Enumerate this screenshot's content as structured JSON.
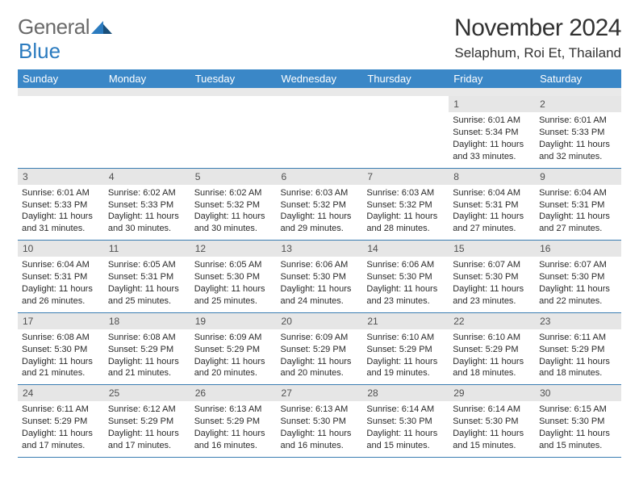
{
  "logo": {
    "word1": "General",
    "word2": "Blue"
  },
  "title": "November 2024",
  "location": "Selaphum, Roi Et, Thailand",
  "colors": {
    "header_bg": "#3a87c7",
    "header_text": "#ffffff",
    "daynum_bg": "#e6e6e6",
    "cell_border": "#3a7db2",
    "logo_gray": "#6a6a6a",
    "logo_blue": "#2b7bbf"
  },
  "weekdays": [
    "Sunday",
    "Monday",
    "Tuesday",
    "Wednesday",
    "Thursday",
    "Friday",
    "Saturday"
  ],
  "weeks": [
    [
      null,
      null,
      null,
      null,
      null,
      {
        "n": "1",
        "sunrise": "Sunrise: 6:01 AM",
        "sunset": "Sunset: 5:34 PM",
        "daylight": "Daylight: 11 hours and 33 minutes."
      },
      {
        "n": "2",
        "sunrise": "Sunrise: 6:01 AM",
        "sunset": "Sunset: 5:33 PM",
        "daylight": "Daylight: 11 hours and 32 minutes."
      }
    ],
    [
      {
        "n": "3",
        "sunrise": "Sunrise: 6:01 AM",
        "sunset": "Sunset: 5:33 PM",
        "daylight": "Daylight: 11 hours and 31 minutes."
      },
      {
        "n": "4",
        "sunrise": "Sunrise: 6:02 AM",
        "sunset": "Sunset: 5:33 PM",
        "daylight": "Daylight: 11 hours and 30 minutes."
      },
      {
        "n": "5",
        "sunrise": "Sunrise: 6:02 AM",
        "sunset": "Sunset: 5:32 PM",
        "daylight": "Daylight: 11 hours and 30 minutes."
      },
      {
        "n": "6",
        "sunrise": "Sunrise: 6:03 AM",
        "sunset": "Sunset: 5:32 PM",
        "daylight": "Daylight: 11 hours and 29 minutes."
      },
      {
        "n": "7",
        "sunrise": "Sunrise: 6:03 AM",
        "sunset": "Sunset: 5:32 PM",
        "daylight": "Daylight: 11 hours and 28 minutes."
      },
      {
        "n": "8",
        "sunrise": "Sunrise: 6:04 AM",
        "sunset": "Sunset: 5:31 PM",
        "daylight": "Daylight: 11 hours and 27 minutes."
      },
      {
        "n": "9",
        "sunrise": "Sunrise: 6:04 AM",
        "sunset": "Sunset: 5:31 PM",
        "daylight": "Daylight: 11 hours and 27 minutes."
      }
    ],
    [
      {
        "n": "10",
        "sunrise": "Sunrise: 6:04 AM",
        "sunset": "Sunset: 5:31 PM",
        "daylight": "Daylight: 11 hours and 26 minutes."
      },
      {
        "n": "11",
        "sunrise": "Sunrise: 6:05 AM",
        "sunset": "Sunset: 5:31 PM",
        "daylight": "Daylight: 11 hours and 25 minutes."
      },
      {
        "n": "12",
        "sunrise": "Sunrise: 6:05 AM",
        "sunset": "Sunset: 5:30 PM",
        "daylight": "Daylight: 11 hours and 25 minutes."
      },
      {
        "n": "13",
        "sunrise": "Sunrise: 6:06 AM",
        "sunset": "Sunset: 5:30 PM",
        "daylight": "Daylight: 11 hours and 24 minutes."
      },
      {
        "n": "14",
        "sunrise": "Sunrise: 6:06 AM",
        "sunset": "Sunset: 5:30 PM",
        "daylight": "Daylight: 11 hours and 23 minutes."
      },
      {
        "n": "15",
        "sunrise": "Sunrise: 6:07 AM",
        "sunset": "Sunset: 5:30 PM",
        "daylight": "Daylight: 11 hours and 23 minutes."
      },
      {
        "n": "16",
        "sunrise": "Sunrise: 6:07 AM",
        "sunset": "Sunset: 5:30 PM",
        "daylight": "Daylight: 11 hours and 22 minutes."
      }
    ],
    [
      {
        "n": "17",
        "sunrise": "Sunrise: 6:08 AM",
        "sunset": "Sunset: 5:30 PM",
        "daylight": "Daylight: 11 hours and 21 minutes."
      },
      {
        "n": "18",
        "sunrise": "Sunrise: 6:08 AM",
        "sunset": "Sunset: 5:29 PM",
        "daylight": "Daylight: 11 hours and 21 minutes."
      },
      {
        "n": "19",
        "sunrise": "Sunrise: 6:09 AM",
        "sunset": "Sunset: 5:29 PM",
        "daylight": "Daylight: 11 hours and 20 minutes."
      },
      {
        "n": "20",
        "sunrise": "Sunrise: 6:09 AM",
        "sunset": "Sunset: 5:29 PM",
        "daylight": "Daylight: 11 hours and 20 minutes."
      },
      {
        "n": "21",
        "sunrise": "Sunrise: 6:10 AM",
        "sunset": "Sunset: 5:29 PM",
        "daylight": "Daylight: 11 hours and 19 minutes."
      },
      {
        "n": "22",
        "sunrise": "Sunrise: 6:10 AM",
        "sunset": "Sunset: 5:29 PM",
        "daylight": "Daylight: 11 hours and 18 minutes."
      },
      {
        "n": "23",
        "sunrise": "Sunrise: 6:11 AM",
        "sunset": "Sunset: 5:29 PM",
        "daylight": "Daylight: 11 hours and 18 minutes."
      }
    ],
    [
      {
        "n": "24",
        "sunrise": "Sunrise: 6:11 AM",
        "sunset": "Sunset: 5:29 PM",
        "daylight": "Daylight: 11 hours and 17 minutes."
      },
      {
        "n": "25",
        "sunrise": "Sunrise: 6:12 AM",
        "sunset": "Sunset: 5:29 PM",
        "daylight": "Daylight: 11 hours and 17 minutes."
      },
      {
        "n": "26",
        "sunrise": "Sunrise: 6:13 AM",
        "sunset": "Sunset: 5:29 PM",
        "daylight": "Daylight: 11 hours and 16 minutes."
      },
      {
        "n": "27",
        "sunrise": "Sunrise: 6:13 AM",
        "sunset": "Sunset: 5:30 PM",
        "daylight": "Daylight: 11 hours and 16 minutes."
      },
      {
        "n": "28",
        "sunrise": "Sunrise: 6:14 AM",
        "sunset": "Sunset: 5:30 PM",
        "daylight": "Daylight: 11 hours and 15 minutes."
      },
      {
        "n": "29",
        "sunrise": "Sunrise: 6:14 AM",
        "sunset": "Sunset: 5:30 PM",
        "daylight": "Daylight: 11 hours and 15 minutes."
      },
      {
        "n": "30",
        "sunrise": "Sunrise: 6:15 AM",
        "sunset": "Sunset: 5:30 PM",
        "daylight": "Daylight: 11 hours and 15 minutes."
      }
    ]
  ]
}
